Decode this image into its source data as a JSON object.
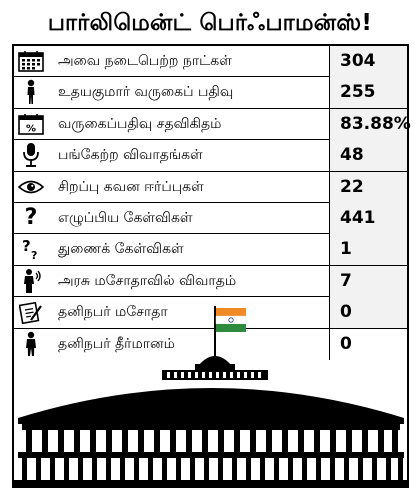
{
  "title": "பார்லிமென்ட் பெர்ஃபாமன்ஸ்!",
  "rows": [
    {
      "icon": "calendar-icon",
      "label": "அவை நடைபெற்ற நாட்கள்",
      "value": "304"
    },
    {
      "icon": "person-walking-icon",
      "label": "உதயகுமார் வருகைப் பதிவு",
      "value": "255"
    },
    {
      "icon": "percent-calendar-icon",
      "label": "வருகைப்பதிவு சதவிகிதம்",
      "value": "83.88%"
    },
    {
      "icon": "microphone-icon",
      "label": "பங்கேற்ற விவாதங்கள்",
      "value": "48"
    },
    {
      "icon": "eye-icon",
      "label": "சிறப்பு கவன ஈர்ப்புகள்",
      "value": "22"
    },
    {
      "icon": "question-mark-icon",
      "label": "எழுப்பிய கேள்விகள்",
      "value": "441"
    },
    {
      "icon": "double-question-icon",
      "label": "துணைக் கேள்விகள்",
      "value": "1"
    },
    {
      "icon": "speaker-icon",
      "label": "அரசு மசோதாவில் விவாதம்",
      "value": "7"
    },
    {
      "icon": "document-pen-icon",
      "label": "தனிநபர் மசோதா",
      "value": "0"
    },
    {
      "icon": "person-standing-icon",
      "label": "தனிநபர் தீர்மானம்",
      "value": "0"
    }
  ],
  "colors": {
    "flag_saffron": "#f08a24",
    "flag_white": "#ffffff",
    "flag_green": "#2e8b3e",
    "building": "#000000"
  }
}
